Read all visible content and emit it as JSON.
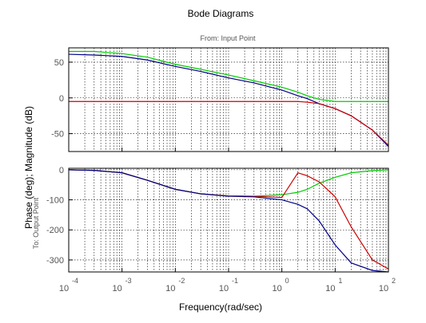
{
  "chart_data": {
    "type": "line",
    "title": "Bode Diagrams",
    "subtitle": "From: Input Point",
    "xlabel": "Frequency(rad/sec)",
    "ylabel": "Phase (deg); Magnitude (dB)",
    "ylabel_secondary": "To: Output Point",
    "x_scale": "log",
    "xlim": [
      0.0001,
      100
    ],
    "x_ticks": [
      {
        "base": "10",
        "exp": "-4",
        "value": 0.0001
      },
      {
        "base": "10",
        "exp": "-3",
        "value": 0.001
      },
      {
        "base": "10",
        "exp": "-2",
        "value": 0.01
      },
      {
        "base": "10",
        "exp": "-1",
        "value": 0.1
      },
      {
        "base": "10",
        "exp": "0",
        "value": 1
      },
      {
        "base": "10",
        "exp": "1",
        "value": 10
      },
      {
        "base": "10",
        "exp": "2",
        "value": 100
      }
    ],
    "grid": true,
    "panels": [
      {
        "name": "magnitude",
        "ylim": [
          -75,
          70
        ],
        "y_ticks": [
          50,
          0,
          -50
        ],
        "y_tick_labels": [
          "50",
          "0",
          "-50"
        ],
        "series": [
          {
            "color": "#00cc00",
            "x": [
              0.0001,
              0.0003,
              0.001,
              0.003,
              0.01,
              0.03,
              0.1,
              0.3,
              1,
              2,
              3,
              5,
              10,
              20,
              50,
              100
            ],
            "y": [
              65,
              65,
              62,
              57,
              47,
              40,
              32,
              24,
              15,
              8,
              3,
              -2,
              -5,
              -5,
              -5,
              -5
            ]
          },
          {
            "color": "#000088",
            "x": [
              0.0001,
              0.0003,
              0.001,
              0.003,
              0.01,
              0.03,
              0.1,
              0.3,
              1,
              2,
              3,
              5,
              10,
              20,
              50,
              100
            ],
            "y": [
              61,
              60,
              58,
              53,
              44,
              37,
              28,
              21,
              11,
              3,
              -1,
              -8,
              -15,
              -25,
              -45,
              -68
            ]
          },
          {
            "color": "#cc0000",
            "x": [
              0.0001,
              0.001,
              0.01,
              0.1,
              1,
              2,
              3,
              5,
              10,
              20,
              50,
              100
            ],
            "y": [
              -5,
              -5,
              -5,
              -5,
              -5,
              -5,
              -6,
              -8,
              -15,
              -25,
              -45,
              -66
            ]
          }
        ]
      },
      {
        "name": "phase",
        "ylim": [
          -340,
          5
        ],
        "y_ticks": [
          0,
          -100,
          -200,
          -300
        ],
        "y_tick_labels": [
          "0",
          "-100",
          "-200",
          "-300"
        ],
        "series": [
          {
            "color": "#00cc00",
            "x": [
              0.0001,
              0.0003,
              0.001,
              0.003,
              0.01,
              0.03,
              0.1,
              0.3,
              1,
              2,
              3,
              5,
              10,
              20,
              50,
              100
            ],
            "y": [
              0,
              -2,
              -10,
              -35,
              -65,
              -80,
              -87,
              -88,
              -83,
              -75,
              -65,
              -45,
              -25,
              -10,
              -3,
              0
            ]
          },
          {
            "color": "#cc0000",
            "x": [
              0.0001,
              0.0003,
              0.001,
              0.003,
              0.01,
              0.03,
              0.1,
              0.3,
              1,
              2,
              3,
              5,
              10,
              20,
              50,
              100
            ],
            "y": [
              0,
              -2,
              -10,
              -35,
              -65,
              -80,
              -87,
              -88,
              -92,
              -10,
              -20,
              -40,
              -90,
              -190,
              -300,
              -330
            ]
          },
          {
            "color": "#000088",
            "x": [
              0.0001,
              0.0003,
              0.001,
              0.003,
              0.01,
              0.03,
              0.1,
              0.3,
              1,
              2,
              3,
              5,
              10,
              20,
              50,
              100
            ],
            "y": [
              0,
              -2,
              -10,
              -35,
              -65,
              -80,
              -88,
              -90,
              -100,
              -115,
              -130,
              -170,
              -250,
              -310,
              -335,
              -340
            ]
          }
        ]
      }
    ]
  }
}
